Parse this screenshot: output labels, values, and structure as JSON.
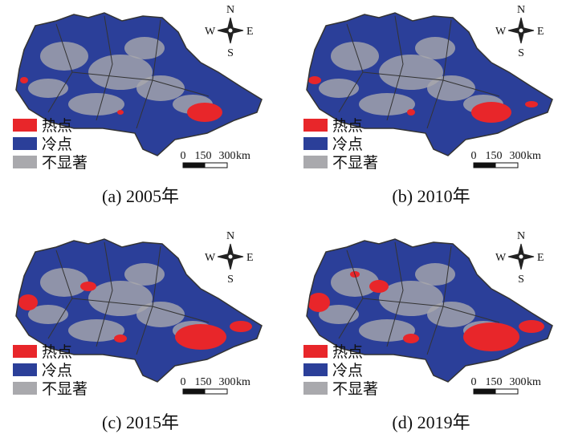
{
  "legend": [
    {
      "label": "热点",
      "color": "#e8262a"
    },
    {
      "label": "冷点",
      "color": "#2b3f99"
    },
    {
      "label": "不显著",
      "color": "#a9a9ad"
    }
  ],
  "compass": {
    "n": "N",
    "s": "S",
    "e": "E",
    "w": "W"
  },
  "scale_bar": {
    "ticks": [
      "0",
      "150",
      "300"
    ],
    "unit": "km"
  },
  "panels": [
    {
      "caption": "(a) 2005年"
    },
    {
      "caption": "(b) 2010年"
    },
    {
      "caption": "(c) 2015年"
    },
    {
      "caption": "(d) 2019年"
    }
  ]
}
